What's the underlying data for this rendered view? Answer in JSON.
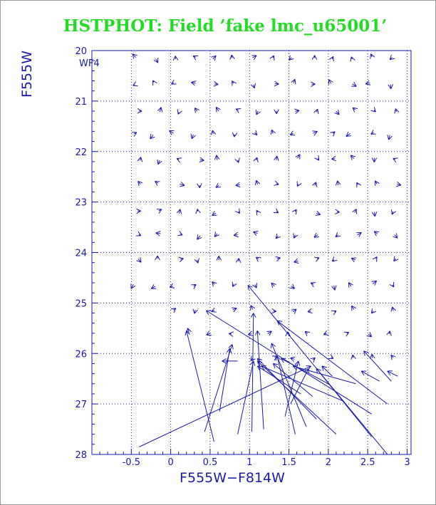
{
  "chart_data": {
    "type": "scatter",
    "title": "HSTPHOT: Field ’fake lmc_u65001’",
    "xlabel": "F555W−F814W",
    "ylabel": "F555W",
    "panel_label": "WF4",
    "xlim": [
      -1.0,
      3.05
    ],
    "ylim": [
      28,
      20
    ],
    "y_inverted": true,
    "x_ticks": [
      "-0.5",
      "0",
      "0.5",
      "1",
      "1.5",
      "2",
      "2.5",
      "3"
    ],
    "y_ticks": [
      "20",
      "21",
      "22",
      "23",
      "24",
      "25",
      "26",
      "27",
      "28"
    ],
    "x_grid": [
      -0.5,
      0,
      0.5,
      1,
      1.5,
      2,
      2.5,
      3
    ],
    "y_grid": [
      21,
      22,
      23,
      24,
      25,
      26,
      27
    ],
    "grid": true,
    "color": "#1a1aaa",
    "title_color": "#22dd22",
    "grid_rows": [
      {
        "y": 20.15,
        "x0": -0.45,
        "x1": 2.9
      },
      {
        "y": 20.65,
        "x0": -0.45,
        "x1": 2.9
      },
      {
        "y": 21.2,
        "x0": -0.4,
        "x1": 2.9
      },
      {
        "y": 21.65,
        "x0": -0.45,
        "x1": 2.9
      },
      {
        "y": 22.15,
        "x0": -0.4,
        "x1": 2.9
      },
      {
        "y": 22.65,
        "x0": -0.4,
        "x1": 2.9
      },
      {
        "y": 23.2,
        "x0": -0.4,
        "x1": 2.9
      },
      {
        "y": 23.65,
        "x0": -0.4,
        "x1": 2.9
      },
      {
        "y": 24.15,
        "x0": -0.4,
        "x1": 2.9
      },
      {
        "y": 24.65,
        "x0": -0.45,
        "x1": 2.9
      },
      {
        "y": 25.15,
        "x0": 0.05,
        "x1": 2.9
      },
      {
        "y": 25.6,
        "x0": 0.25,
        "x1": 2.9
      },
      {
        "y": 26.1,
        "x0": 1.05,
        "x1": 2.85
      }
    ],
    "vectors": [
      {
        "x0": -0.4,
        "y0": 27.85,
        "x1": 1.78,
        "y1": 26.25
      },
      {
        "x0": 0.55,
        "y0": 27.75,
        "x1": 0.2,
        "y1": 25.55
      },
      {
        "x0": 0.43,
        "y0": 27.55,
        "x1": 0.78,
        "y1": 25.82
      },
      {
        "x0": 0.62,
        "y0": 27.15,
        "x1": 0.75,
        "y1": 25.9
      },
      {
        "x0": 0.85,
        "y0": 27.6,
        "x1": 1.05,
        "y1": 26.15
      },
      {
        "x0": 1.03,
        "y0": 27.55,
        "x1": 1.05,
        "y1": 25.2
      },
      {
        "x0": 1.18,
        "y0": 27.5,
        "x1": 1.1,
        "y1": 25.55
      },
      {
        "x0": 0.85,
        "y0": 26.15,
        "x1": 0.65,
        "y1": 26.15
      },
      {
        "x0": 2.75,
        "y0": 28.0,
        "x1": 0.98,
        "y1": 24.65
      },
      {
        "x0": 2.55,
        "y0": 27.2,
        "x1": 0.45,
        "y1": 25.15
      },
      {
        "x0": 2.75,
        "y0": 27.0,
        "x1": 1.35,
        "y1": 25.35
      },
      {
        "x0": 1.58,
        "y0": 27.6,
        "x1": 1.35,
        "y1": 26.05
      },
      {
        "x0": 1.72,
        "y0": 27.45,
        "x1": 1.28,
        "y1": 25.8
      },
      {
        "x0": 1.85,
        "y0": 27.3,
        "x1": 1.1,
        "y1": 26.1
      },
      {
        "x0": 1.45,
        "y0": 27.25,
        "x1": 1.62,
        "y1": 26.15
      },
      {
        "x0": 1.52,
        "y0": 27.0,
        "x1": 1.75,
        "y1": 26.3
      },
      {
        "x0": 2.1,
        "y0": 27.6,
        "x1": 1.1,
        "y1": 26.15
      },
      {
        "x0": 2.55,
        "y0": 27.65,
        "x1": 1.85,
        "y1": 26.3
      },
      {
        "x0": 2.2,
        "y0": 26.95,
        "x1": 1.15,
        "y1": 26.25
      },
      {
        "x0": 2.0,
        "y0": 26.6,
        "x1": 1.4,
        "y1": 26.1
      },
      {
        "x0": 2.35,
        "y0": 26.6,
        "x1": 1.55,
        "y1": 26.25
      },
      {
        "x0": 1.8,
        "y0": 26.85,
        "x1": 1.3,
        "y1": 26.2
      },
      {
        "x0": 1.65,
        "y0": 26.8,
        "x1": 1.1,
        "y1": 26.25
      },
      {
        "x0": 2.05,
        "y0": 26.45,
        "x1": 1.92,
        "y1": 26.25
      },
      {
        "x0": 2.8,
        "y0": 26.55,
        "x1": 2.45,
        "y1": 25.95
      },
      {
        "x0": 2.65,
        "y0": 26.55,
        "x1": 2.42,
        "y1": 26.35
      },
      {
        "x0": 2.88,
        "y0": 26.45,
        "x1": 2.75,
        "y1": 26.35
      }
    ]
  }
}
